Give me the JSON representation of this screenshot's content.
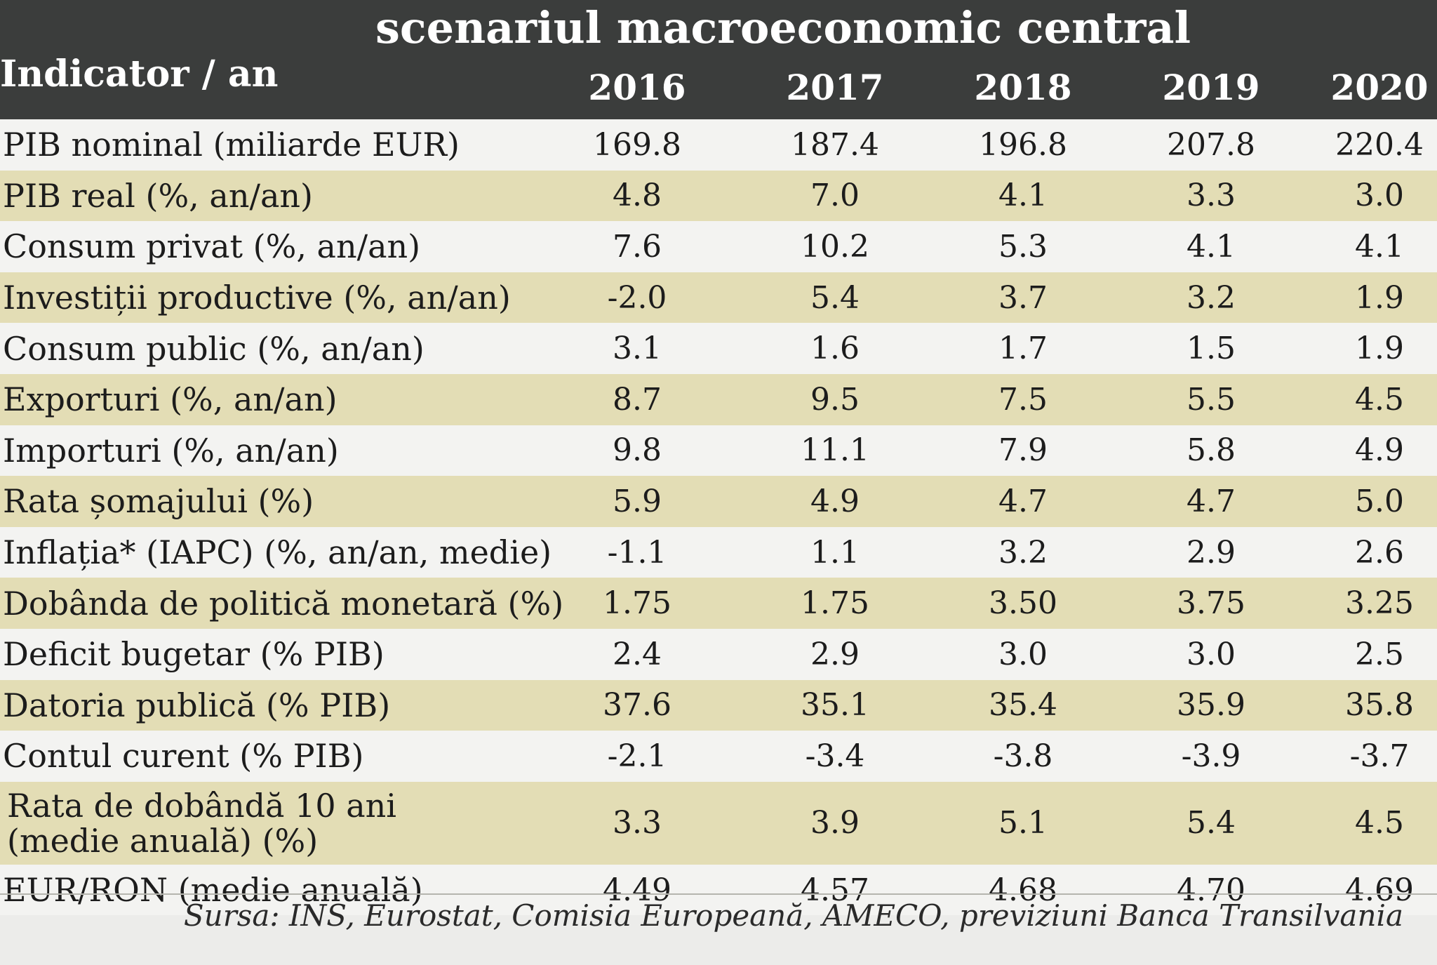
{
  "title": "scenariul macroeconomic central",
  "header": {
    "indicator": "Indicator / an",
    "years": [
      "2016",
      "2017",
      "2018",
      "2019",
      "2020"
    ]
  },
  "rows": [
    {
      "label": "PIB nominal (miliarde EUR)",
      "values": [
        "169.8",
        "187.4",
        "196.8",
        "207.8",
        "220.4"
      ]
    },
    {
      "label": "PIB real (%, an/an)",
      "values": [
        "4.8",
        "7.0",
        "4.1",
        "3.3",
        "3.0"
      ]
    },
    {
      "label": "Consum privat (%, an/an)",
      "values": [
        "7.6",
        "10.2",
        "5.3",
        "4.1",
        "4.1"
      ]
    },
    {
      "label": "Investiții productive (%, an/an)",
      "values": [
        "-2.0",
        "5.4",
        "3.7",
        "3.2",
        "1.9"
      ]
    },
    {
      "label": "Consum public (%, an/an)",
      "values": [
        "3.1",
        "1.6",
        "1.7",
        "1.5",
        "1.9"
      ]
    },
    {
      "label": "Exporturi (%, an/an)",
      "values": [
        "8.7",
        "9.5",
        "7.5",
        "5.5",
        "4.5"
      ]
    },
    {
      "label": "Importuri (%, an/an)",
      "values": [
        "9.8",
        "11.1",
        "7.9",
        "5.8",
        "4.9"
      ]
    },
    {
      "label": "Rata șomajului (%)",
      "values": [
        "5.9",
        "4.9",
        "4.7",
        "4.7",
        "5.0"
      ]
    },
    {
      "label": "Inflația* (IAPC) (%, an/an, medie)",
      "values": [
        "-1.1",
        "1.1",
        "3.2",
        "2.9",
        "2.6"
      ]
    },
    {
      "label": "Dobânda de politică monetară (%)",
      "values": [
        "1.75",
        "1.75",
        "3.50",
        "3.75",
        "3.25"
      ]
    },
    {
      "label": "Deficit bugetar (% PIB)",
      "values": [
        "2.4",
        "2.9",
        "3.0",
        "3.0",
        "2.5"
      ]
    },
    {
      "label": "Datoria publică (% PIB)",
      "values": [
        "37.6",
        "35.1",
        "35.4",
        "35.9",
        "35.8"
      ]
    },
    {
      "label": "Contul curent (% PIB)",
      "values": [
        "-2.1",
        "-3.4",
        "-3.8",
        "-3.9",
        "-3.7"
      ]
    },
    {
      "label": "Rata de dobândă 10 ani (medie anuală) (%)",
      "values": [
        "3.3",
        "3.9",
        "5.1",
        "5.4",
        "4.5"
      ]
    },
    {
      "label": "EUR/RON (medie anuală)",
      "values": [
        "4.49",
        "4.57",
        "4.68",
        "4.70",
        "4.69"
      ]
    }
  ],
  "source": "Sursa: INS, Eurostat, Comisia Europeană, AMECO, previziuni Banca Transilvania"
}
